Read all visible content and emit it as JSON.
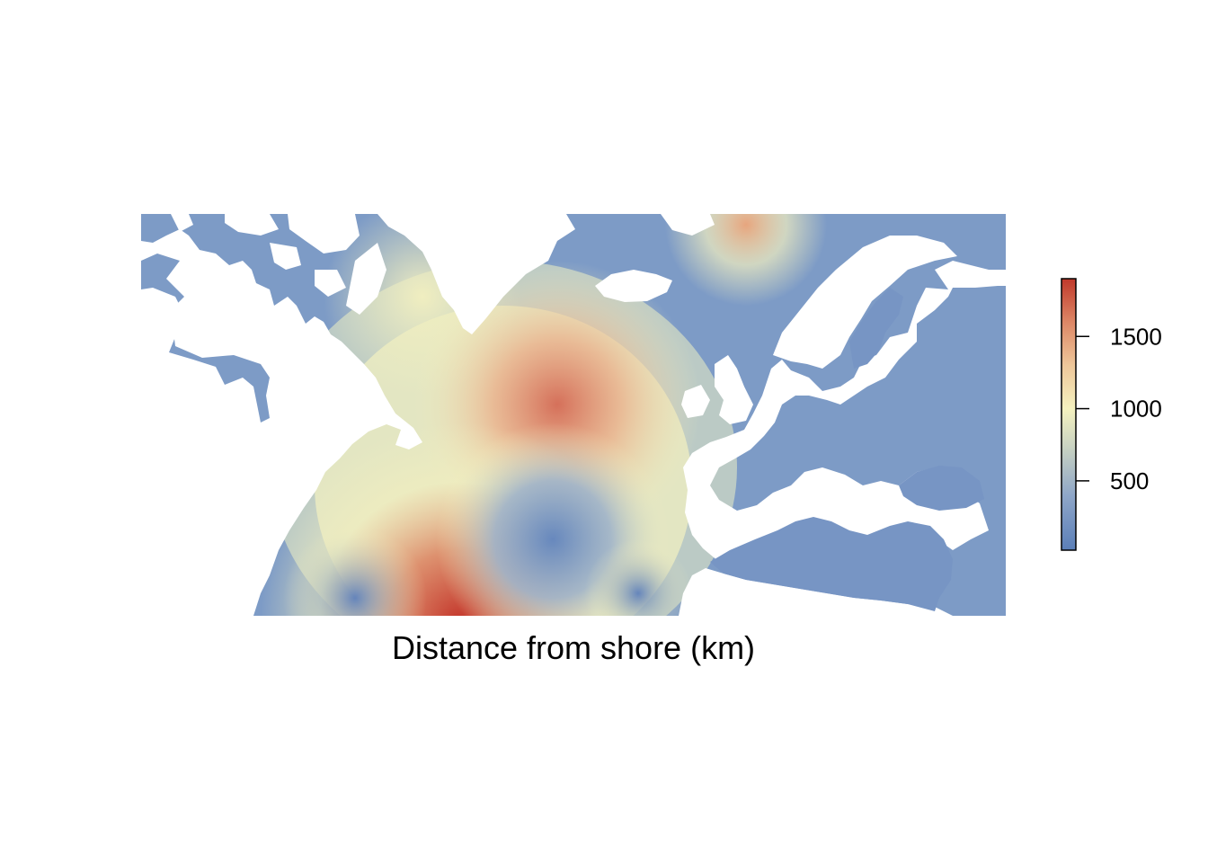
{
  "title": "Distance from shore (km)",
  "legend": {
    "ticks": [
      {
        "value": 500,
        "label": "500"
      },
      {
        "value": 1000,
        "label": "1000"
      },
      {
        "value": 1500,
        "label": "1500"
      }
    ],
    "min": 20,
    "max": 1900,
    "colors": [
      "#5b7fb8",
      "#8ea6c8",
      "#c9d3c2",
      "#f4f1bf",
      "#eec79a",
      "#dd8766",
      "#c0392b"
    ]
  }
}
